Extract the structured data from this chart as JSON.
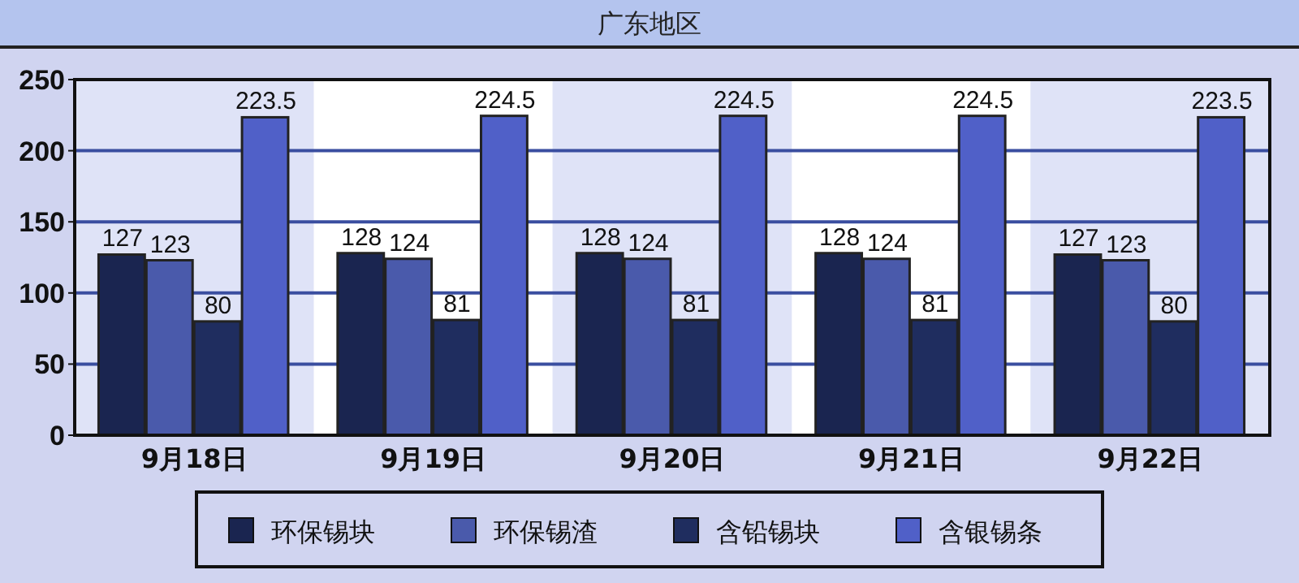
{
  "chart_data": {
    "type": "bar",
    "title": "广东地区",
    "categories": [
      "9月18日",
      "9月19日",
      "9月20日",
      "9月21日",
      "9月22日"
    ],
    "series": [
      {
        "name": "环保锡块",
        "color": "#1a2550",
        "values": [
          127,
          128,
          128,
          128,
          127
        ]
      },
      {
        "name": "环保锡渣",
        "color": "#4a5aab",
        "values": [
          123,
          124,
          124,
          124,
          123
        ]
      },
      {
        "name": "含铅锡块",
        "color": "#1f2d5f",
        "values": [
          80,
          81,
          81,
          81,
          80
        ]
      },
      {
        "name": "含银锡条",
        "color": "#5060c8",
        "values": [
          223.5,
          224.5,
          224.5,
          224.5,
          223.5
        ]
      }
    ],
    "ylim": [
      0,
      250
    ],
    "yticks": [
      0,
      50,
      100,
      150,
      200,
      250
    ],
    "grid": "y",
    "data_labels": true,
    "legend": "bottom"
  }
}
